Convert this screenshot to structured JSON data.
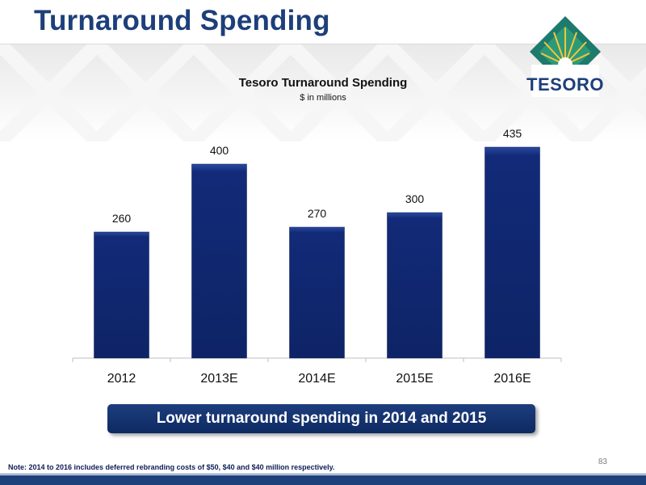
{
  "slide": {
    "title": "Turnaround Spending",
    "page_number": "83",
    "note": "Note: 2014 to 2016 includes deferred rebranding costs of  $50, $40 and $40 million respectively.",
    "callout": "Lower turnaround spending in 2014 and 2015"
  },
  "logo": {
    "name": "tesoro-logo",
    "text": "TESORO"
  },
  "colors": {
    "brand_blue": "#1d3f7a",
    "bar_fill": "#0f2670",
    "bar_highlight": "#2a4aa0"
  },
  "chart_data": {
    "type": "bar",
    "title": "Tesoro Turnaround Spending",
    "subtitle": "$ in millions",
    "categories": [
      "2012",
      "2013E",
      "2014E",
      "2015E",
      "2016E"
    ],
    "values": [
      260,
      400,
      270,
      300,
      435
    ],
    "data_labels": [
      "260",
      "400",
      "270",
      "300",
      "435"
    ],
    "xlabel": "",
    "ylabel": "",
    "ylim": [
      0,
      450
    ],
    "grid": false,
    "legend": "none"
  }
}
